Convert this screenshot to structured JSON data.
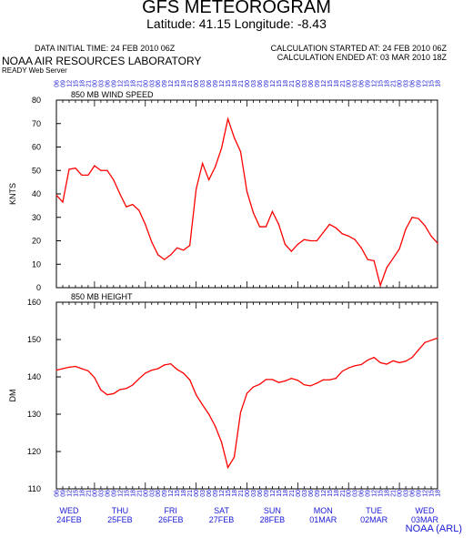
{
  "header": {
    "title": "GFS METEOROGRAM",
    "subtitle": "Latitude: 41.15 Longitude:  -8.43",
    "initial_time": "DATA INITIAL TIME: 24 FEB 2010 06Z",
    "calc_started": "CALCULATION STARTED AT: 24 FEB 2010 06Z",
    "calc_ended": "CALCULATION ENDED AT: 03 MAR 2010 18Z",
    "lab": "NOAA AIR RESOURCES LABORATORY",
    "server": "READY Web Server",
    "credit": "NOAA (ARL)"
  },
  "colors": {
    "line": "#ff0000",
    "hour_labels": "#1a1ad6",
    "axes": "#000000"
  },
  "hour_labels": [
    "06",
    "09",
    "12",
    "15",
    "18",
    "21",
    "00",
    "03",
    "06",
    "09",
    "12",
    "15",
    "18",
    "21",
    "00",
    "03",
    "06",
    "09",
    "12",
    "15",
    "18",
    "21",
    "00",
    "03",
    "06",
    "09",
    "12",
    "15",
    "18",
    "21",
    "00",
    "03",
    "06",
    "09",
    "12",
    "15",
    "18",
    "21",
    "00",
    "03",
    "06",
    "09",
    "12",
    "15",
    "18",
    "21",
    "00",
    "03",
    "06",
    "09",
    "12",
    "15",
    "18",
    "21",
    "00",
    "03",
    "06",
    "09",
    "12",
    "15",
    "18"
  ],
  "day_labels": [
    {
      "day": "WED",
      "date": "24FEB"
    },
    {
      "day": "THU",
      "date": "25FEB"
    },
    {
      "day": "FRI",
      "date": "26FEB"
    },
    {
      "day": "SAT",
      "date": "27FEB"
    },
    {
      "day": "SUN",
      "date": "28FEB"
    },
    {
      "day": "MON",
      "date": "01MAR"
    },
    {
      "day": "TUE",
      "date": "02MAR"
    },
    {
      "day": "WED",
      "date": "03MAR"
    }
  ],
  "chart_data": [
    {
      "type": "line",
      "title": "850 MB  WIND SPEED",
      "ylabel": "KNTS",
      "ylim": [
        0,
        80
      ],
      "yticks": [
        0,
        10,
        20,
        30,
        40,
        50,
        60,
        70,
        80
      ],
      "x_step_hours": 3,
      "values": [
        39.5,
        36.5,
        50.5,
        51,
        48,
        48,
        52,
        50,
        50,
        46,
        40,
        34.5,
        35.5,
        33,
        27,
        19.5,
        14,
        12,
        14,
        17,
        16,
        18,
        42,
        53,
        46,
        51.5,
        59.5,
        72,
        64,
        58,
        41,
        32,
        26,
        26,
        32.5,
        27,
        18.5,
        15.5,
        18.5,
        20.5,
        20,
        20,
        23.5,
        27,
        25.5,
        23,
        22,
        20.5,
        17,
        12,
        11.5,
        1,
        8.5,
        12.5,
        16.5,
        25,
        30,
        29.5,
        26.5,
        22,
        19
      ]
    },
    {
      "type": "line",
      "title": "850 MB  HEIGHT",
      "ylabel": "DM",
      "ylim": [
        110,
        160
      ],
      "yticks": [
        110,
        120,
        130,
        140,
        150,
        160
      ],
      "x_step_hours": 3,
      "values": [
        141.8,
        142.2,
        142.6,
        142.8,
        142.2,
        141.6,
        139.8,
        136.5,
        135.2,
        135.5,
        136.6,
        136.9,
        137.8,
        139.5,
        141,
        141.8,
        142.2,
        143.2,
        143.5,
        142,
        141,
        139.2,
        135.2,
        132.5,
        130,
        126.8,
        122.5,
        115.7,
        118.5,
        130.5,
        135.6,
        137.3,
        138,
        139.3,
        139.3,
        138.5,
        138.9,
        139.6,
        139.1,
        137.9,
        137.6,
        138.3,
        139.2,
        139.2,
        139.6,
        141.5,
        142.4,
        143,
        143.3,
        144.5,
        145.2,
        143.8,
        143.4,
        144.3,
        143.8,
        144.2,
        145.2,
        147.2,
        149.2,
        149.8,
        150.4
      ]
    }
  ]
}
